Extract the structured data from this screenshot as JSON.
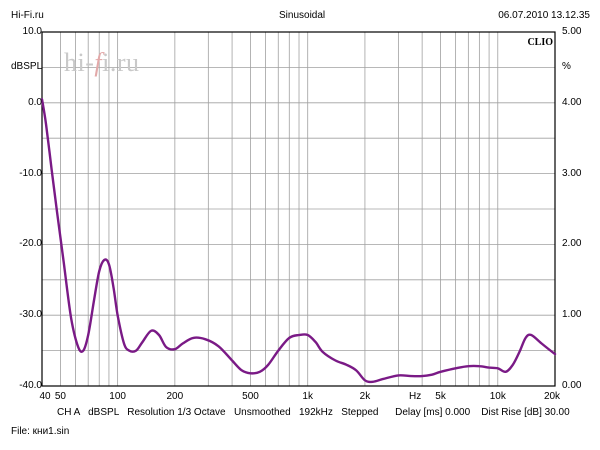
{
  "header": {
    "left": "Hi-Fi.ru",
    "center": "Sinusoidal",
    "right": "06.07.2010 13.12.35"
  },
  "brand": "CLIO",
  "watermark": "hi-fi.ru",
  "footer": {
    "settings": "CH A   dBSPL   Resolution 1/3 Octave   Unsmoothed   192kHz   Stepped      Delay [ms] 0.000    Dist Rise [dB] 30.00",
    "file": "File: кни1.sin"
  },
  "colors": {
    "curve": "#7a1a86",
    "grid": "#a0a0a0",
    "frame": "#000000"
  },
  "chart_data": {
    "type": "line",
    "xscale": "log",
    "xlim": [
      40,
      20000
    ],
    "ylim_left": [
      -40,
      10
    ],
    "ylim_right": [
      0,
      5
    ],
    "ylabel_left": "dBSPL",
    "ylabel_right": "%",
    "xlabel": "Hz",
    "left_tick_labels": [
      "10.0",
      "0.0",
      "-10.0",
      "-20.0",
      "-30.0",
      "-40.0"
    ],
    "right_tick_labels": [
      "5.00",
      "4.00",
      "3.00",
      "2.00",
      "1.00",
      "0.00"
    ],
    "x_tick_values": [
      40,
      50,
      100,
      200,
      500,
      1000,
      2000,
      5000,
      10000,
      20000
    ],
    "x_tick_labels": [
      "40",
      "50",
      "100",
      "200",
      "500",
      "1k",
      "2k",
      "5k",
      "10k",
      "20k"
    ],
    "grid": true,
    "series": [
      {
        "axis": "right",
        "x": [
          40,
          42,
          45,
          48,
          52,
          57,
          62,
          66,
          70,
          75,
          80,
          85,
          90,
          95,
          100,
          108,
          115,
          125,
          135,
          150,
          165,
          180,
          200,
          220,
          250,
          290,
          340,
          400,
          450,
          500,
          560,
          620,
          700,
          800,
          900,
          1000,
          1100,
          1200,
          1400,
          1600,
          1800,
          2000,
          2200,
          2500,
          3000,
          3500,
          4000,
          4500,
          5000,
          6000,
          7000,
          8000,
          9000,
          10000,
          11000,
          12000,
          13000,
          14000,
          15000,
          17000,
          20000
        ],
        "y": [
          4.05,
          3.7,
          3.05,
          2.45,
          1.75,
          0.95,
          0.55,
          0.5,
          0.72,
          1.2,
          1.62,
          1.78,
          1.72,
          1.4,
          1.0,
          0.6,
          0.5,
          0.5,
          0.62,
          0.78,
          0.72,
          0.55,
          0.52,
          0.6,
          0.68,
          0.66,
          0.56,
          0.36,
          0.22,
          0.18,
          0.2,
          0.3,
          0.5,
          0.68,
          0.72,
          0.72,
          0.62,
          0.48,
          0.36,
          0.3,
          0.22,
          0.08,
          0.06,
          0.1,
          0.15,
          0.14,
          0.14,
          0.16,
          0.2,
          0.25,
          0.28,
          0.28,
          0.26,
          0.25,
          0.2,
          0.3,
          0.48,
          0.68,
          0.72,
          0.6,
          0.45
        ]
      }
    ]
  }
}
